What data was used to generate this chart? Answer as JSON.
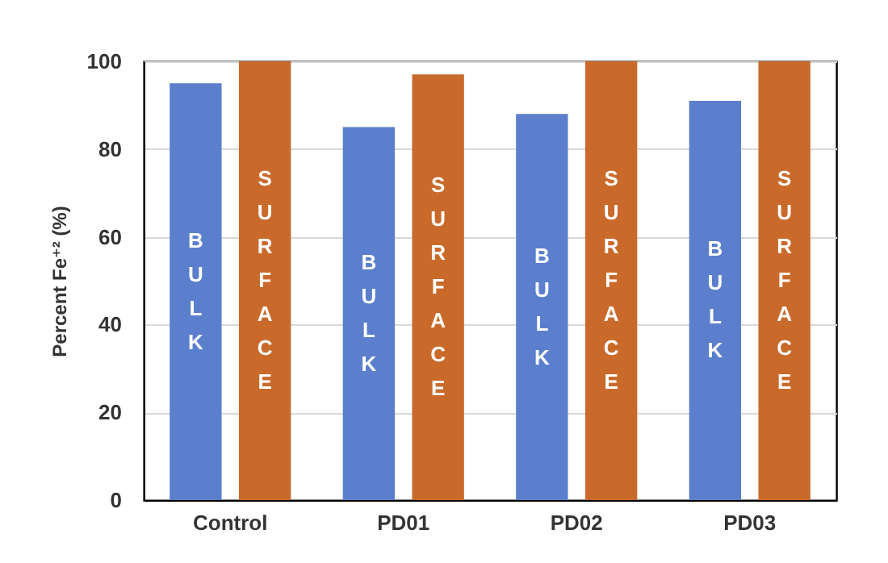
{
  "chart_data": {
    "type": "bar",
    "ylabel": "Percent Fe⁺² (%)",
    "categories": [
      "Control",
      "PD01",
      "PD02",
      "PD03"
    ],
    "series": [
      {
        "name": "BULK",
        "color": "#5b7fcc",
        "values": [
          95,
          85,
          88,
          91
        ]
      },
      {
        "name": "SURFACE",
        "color": "#c96a2b",
        "values": [
          100,
          97,
          100,
          100
        ]
      }
    ],
    "ylim": [
      0,
      100
    ],
    "yticks": [
      0,
      20,
      40,
      60,
      80,
      100
    ],
    "grid": "y"
  }
}
